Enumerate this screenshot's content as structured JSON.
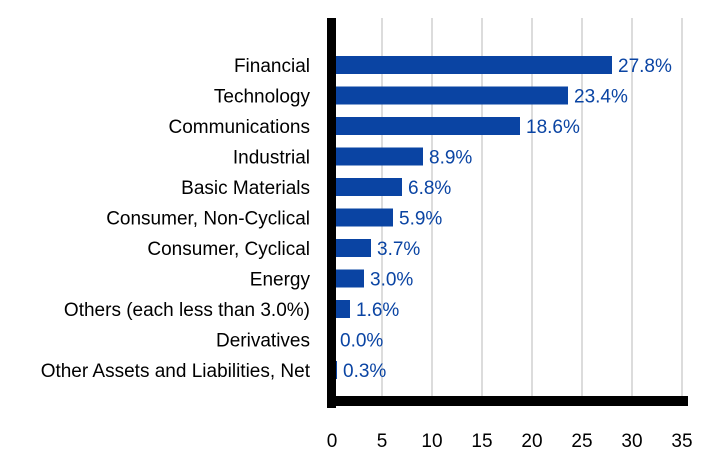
{
  "chart_data": {
    "type": "bar",
    "orientation": "horizontal",
    "categories": [
      "Financial",
      "Technology",
      "Communications",
      "Industrial",
      "Basic Materials",
      "Consumer, Non-Cyclical",
      "Consumer, Cyclical",
      "Energy",
      "Others (each less than 3.0%)",
      "Derivatives",
      "Other Assets and Liabilities, Net"
    ],
    "values": [
      27.8,
      23.4,
      18.6,
      8.9,
      6.8,
      5.9,
      3.7,
      3.0,
      1.6,
      0.0,
      0.3
    ],
    "value_labels": [
      "27.8%",
      "23.4%",
      "18.6%",
      "8.9%",
      "6.8%",
      "5.9%",
      "3.7%",
      "3.0%",
      "1.6%",
      "0.0%",
      "0.3%"
    ],
    "x_ticks": [
      0,
      5,
      10,
      15,
      20,
      25,
      30,
      35
    ],
    "xlim": [
      0,
      35
    ],
    "grid": true,
    "bar_color": "#0a44a3",
    "label_color": "#0a44a3",
    "axis_color": "#000000",
    "grid_color": "#d0d0d0",
    "title": "",
    "xlabel": "",
    "ylabel": ""
  }
}
